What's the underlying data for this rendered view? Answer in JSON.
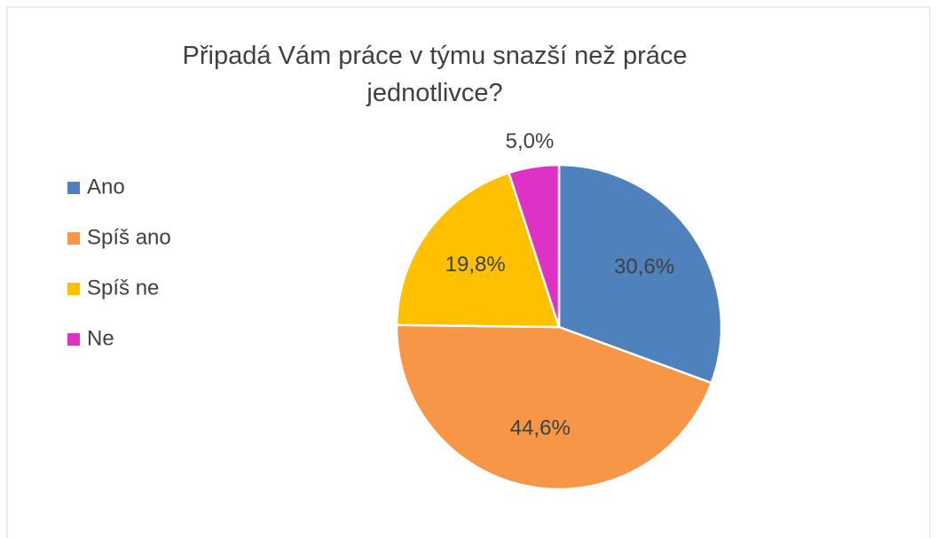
{
  "chart_data": {
    "type": "pie",
    "title": "Připadá Vám práce v týmu snazší než práce jednotlivce?",
    "categories": [
      "Ano",
      "Spíš ano",
      "Spíš ne",
      "Ne"
    ],
    "values": [
      30.6,
      44.6,
      19.8,
      5.0
    ],
    "value_labels": [
      "30,6%",
      "44,6%",
      "19,8%",
      "5,0%"
    ],
    "colors": [
      "#4f81bd",
      "#f79646",
      "#ffc000",
      "#de32c6"
    ],
    "legend": "left"
  }
}
